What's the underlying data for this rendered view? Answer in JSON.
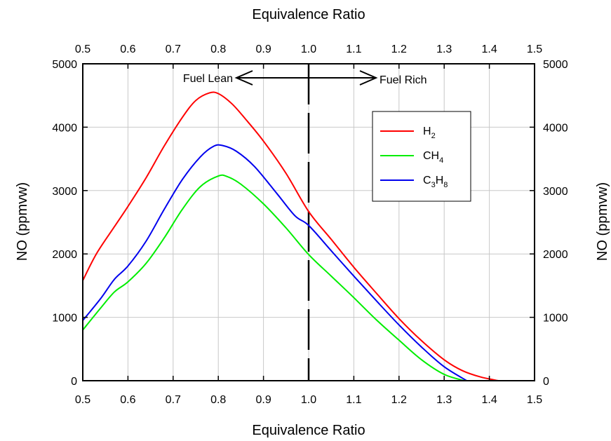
{
  "chart_data": {
    "type": "line",
    "xlabel": "Equivalence Ratio",
    "x2label": "Equivalence Ratio",
    "ylabel": "NO (ppmvw)",
    "y2label": "NO (ppmvw)",
    "xlim": [
      0.5,
      1.5
    ],
    "ylim": [
      0,
      5000
    ],
    "xticks": [
      0.5,
      0.6,
      0.7,
      0.8,
      0.9,
      1.0,
      1.1,
      1.2,
      1.3,
      1.4,
      1.5
    ],
    "xtick_labels": [
      "0.5",
      "0.6",
      "0.7",
      "0.8",
      "0.9",
      "1.0",
      "1.1",
      "1.2",
      "1.3",
      "1.4",
      "1.5"
    ],
    "yticks": [
      0,
      1000,
      2000,
      3000,
      4000,
      5000
    ],
    "ytick_labels": [
      "0",
      "1000",
      "2000",
      "3000",
      "4000",
      "5000"
    ],
    "grid": true,
    "legend": "top-right",
    "vline_x": 1.0,
    "annotations": {
      "lean": "Fuel Lean",
      "rich": "Fuel Rich"
    },
    "series": [
      {
        "name": "H2",
        "label_main": "H",
        "label_sub": "2",
        "color": "#ff0000",
        "x": [
          0.5,
          0.53,
          0.57,
          0.6,
          0.64,
          0.68,
          0.72,
          0.75,
          0.78,
          0.8,
          0.83,
          0.86,
          0.9,
          0.95,
          1.0,
          1.05,
          1.1,
          1.15,
          1.2,
          1.25,
          1.3,
          1.34,
          1.38,
          1.42
        ],
        "y": [
          1580,
          2000,
          2430,
          2750,
          3200,
          3700,
          4150,
          4420,
          4540,
          4530,
          4370,
          4130,
          3780,
          3270,
          2670,
          2230,
          1790,
          1380,
          980,
          630,
          330,
          160,
          60,
          0
        ]
      },
      {
        "name": "CH4",
        "label_main": "CH",
        "label_sub": "4",
        "color": "#00ee00",
        "x": [
          0.5,
          0.54,
          0.57,
          0.6,
          0.64,
          0.68,
          0.72,
          0.76,
          0.8,
          0.82,
          0.85,
          0.9,
          0.95,
          1.0,
          1.05,
          1.1,
          1.15,
          1.2,
          1.25,
          1.3,
          1.345
        ],
        "y": [
          800,
          1150,
          1400,
          1560,
          1850,
          2250,
          2700,
          3060,
          3230,
          3220,
          3100,
          2790,
          2410,
          1990,
          1650,
          1310,
          960,
          640,
          330,
          100,
          0
        ]
      },
      {
        "name": "C3H8",
        "label_main": "C",
        "label_sub": "3",
        "label_main2": "H",
        "label_sub2": "8",
        "color": "#0000ee",
        "x": [
          0.5,
          0.54,
          0.57,
          0.6,
          0.64,
          0.68,
          0.72,
          0.76,
          0.79,
          0.81,
          0.84,
          0.88,
          0.93,
          0.97,
          1.0,
          1.05,
          1.1,
          1.15,
          1.2,
          1.25,
          1.3,
          1.35
        ],
        "y": [
          950,
          1300,
          1600,
          1810,
          2200,
          2700,
          3170,
          3530,
          3700,
          3710,
          3620,
          3380,
          2950,
          2600,
          2450,
          2050,
          1650,
          1260,
          880,
          530,
          220,
          0
        ]
      }
    ]
  }
}
